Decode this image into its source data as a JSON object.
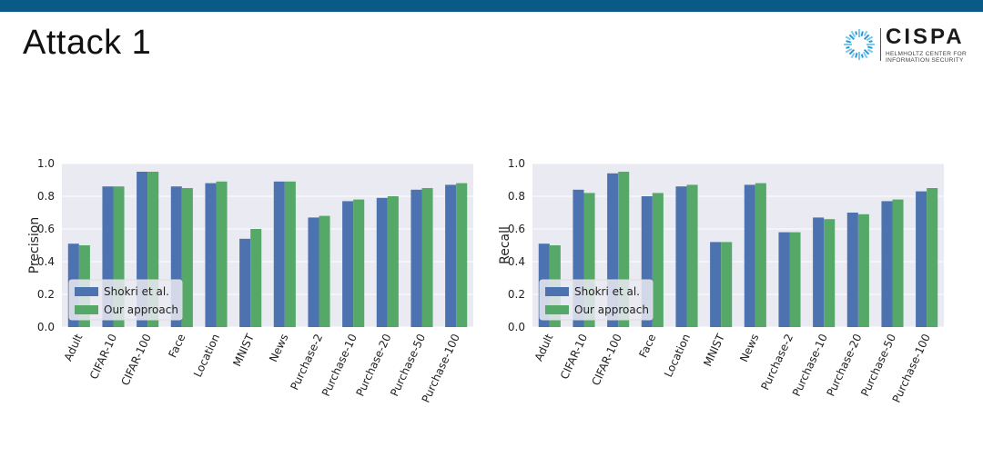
{
  "slide": {
    "title": "Attack 1",
    "logo_text": "CISPA",
    "logo_subtitle": "HELMHOLTZ CENTER FOR INFORMATION SECURITY"
  },
  "chart_data": [
    {
      "type": "bar",
      "ylabel": "Precision",
      "ylim": [
        0,
        1
      ],
      "yticks": [
        0.0,
        0.2,
        0.4,
        0.6,
        0.8,
        1.0
      ],
      "grid": true,
      "legend_position": "bottom-left",
      "categories": [
        "Adult",
        "CIFAR-10",
        "CIFAR-100",
        "Face",
        "Location",
        "MNIST",
        "News",
        "Purchase-2",
        "Purchase-10",
        "Purchase-20",
        "Purchase-50",
        "Purchase-100"
      ],
      "series": [
        {
          "name": "Shokri et al.",
          "color": "#4c72b0",
          "values": [
            0.51,
            0.86,
            0.95,
            0.86,
            0.88,
            0.54,
            0.89,
            0.67,
            0.77,
            0.79,
            0.84,
            0.87
          ]
        },
        {
          "name": "Our approach",
          "color": "#55a868",
          "values": [
            0.5,
            0.86,
            0.95,
            0.85,
            0.89,
            0.6,
            0.89,
            0.68,
            0.78,
            0.8,
            0.85,
            0.88
          ]
        }
      ]
    },
    {
      "type": "bar",
      "ylabel": "Recall",
      "ylim": [
        0,
        1
      ],
      "yticks": [
        0.0,
        0.2,
        0.4,
        0.6,
        0.8,
        1.0
      ],
      "grid": true,
      "legend_position": "bottom-left",
      "categories": [
        "Adult",
        "CIFAR-10",
        "CIFAR-100",
        "Face",
        "Location",
        "MNIST",
        "News",
        "Purchase-2",
        "Purchase-10",
        "Purchase-20",
        "Purchase-50",
        "Purchase-100"
      ],
      "series": [
        {
          "name": "Shokri et al.",
          "color": "#4c72b0",
          "values": [
            0.51,
            0.84,
            0.94,
            0.8,
            0.86,
            0.52,
            0.87,
            0.58,
            0.67,
            0.7,
            0.77,
            0.83
          ]
        },
        {
          "name": "Our approach",
          "color": "#55a868",
          "values": [
            0.5,
            0.82,
            0.95,
            0.82,
            0.87,
            0.52,
            0.88,
            0.58,
            0.66,
            0.69,
            0.78,
            0.85
          ]
        }
      ]
    }
  ]
}
